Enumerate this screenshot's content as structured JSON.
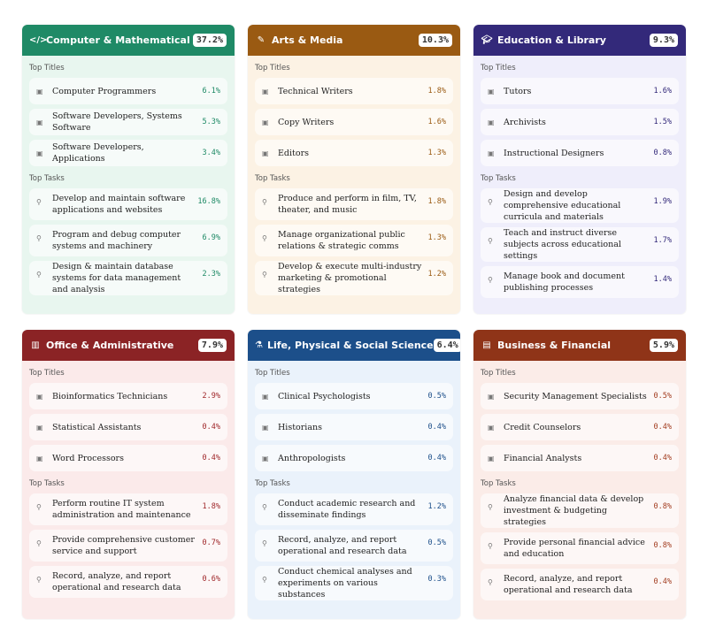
{
  "labels": {
    "titles": "Top Titles",
    "tasks": "Top Tasks"
  },
  "cards": [
    {
      "title": "Computer & Mathematical",
      "pct": "37.2%",
      "icon": "code-icon",
      "glyph": "</>",
      "header_color": "#1f8a66",
      "body_color": "#e8f6ef",
      "accent": "#1f8a66",
      "titles": [
        {
          "name": "Computer Programmers",
          "pct": "6.1%"
        },
        {
          "name": "Software Developers, Systems Software",
          "pct": "5.3%"
        },
        {
          "name": "Software Developers, Applications",
          "pct": "3.4%"
        }
      ],
      "tasks": [
        {
          "name": "Develop and maintain software applications and websites",
          "pct": "16.8%"
        },
        {
          "name": "Program and debug computer systems and machinery",
          "pct": "6.9%"
        },
        {
          "name": "Design & maintain database systems for data management and analysis",
          "pct": "2.3%"
        }
      ]
    },
    {
      "title": "Arts & Media",
      "pct": "10.3%",
      "icon": "brush-icon",
      "glyph": "✎",
      "header_color": "#9a5a12",
      "body_color": "#fcf2e4",
      "accent": "#9a5a12",
      "titles": [
        {
          "name": "Technical Writers",
          "pct": "1.8%"
        },
        {
          "name": "Copy Writers",
          "pct": "1.6%"
        },
        {
          "name": "Editors",
          "pct": "1.3%"
        }
      ],
      "tasks": [
        {
          "name": "Produce and perform in film, TV, theater, and music",
          "pct": "1.8%"
        },
        {
          "name": "Manage organizational public relations & strategic comms",
          "pct": "1.3%"
        },
        {
          "name": "Develop & execute multi-industry marketing & promotional strategies",
          "pct": "1.2%"
        }
      ]
    },
    {
      "title": "Education & Library",
      "pct": "9.3%",
      "icon": "graduation-cap-icon",
      "glyph": "🎓︎",
      "header_color": "#33297a",
      "body_color": "#efeefb",
      "accent": "#33297a",
      "titles": [
        {
          "name": "Tutors",
          "pct": "1.6%"
        },
        {
          "name": "Archivists",
          "pct": "1.5%"
        },
        {
          "name": "Instructional Designers",
          "pct": "0.8%"
        }
      ],
      "tasks": [
        {
          "name": "Design and develop comprehensive educational curricula and materials",
          "pct": "1.9%"
        },
        {
          "name": "Teach and instruct diverse subjects across educational settings",
          "pct": "1.7%"
        },
        {
          "name": "Manage book and document publishing processes",
          "pct": "1.4%"
        }
      ]
    },
    {
      "title": "Office & Administrative",
      "pct": "7.9%",
      "icon": "building-icon",
      "glyph": "▥",
      "header_color": "#8b2325",
      "body_color": "#fbeaea",
      "accent": "#a0282b",
      "titles": [
        {
          "name": "Bioinformatics Technicians",
          "pct": "2.9%"
        },
        {
          "name": "Statistical Assistants",
          "pct": "0.4%"
        },
        {
          "name": "Word Processors",
          "pct": "0.4%"
        }
      ],
      "tasks": [
        {
          "name": "Perform routine IT system administration and maintenance",
          "pct": "1.8%"
        },
        {
          "name": "Provide comprehensive customer service and support",
          "pct": "0.7%"
        },
        {
          "name": "Record, analyze, and report operational and research data",
          "pct": "0.6%"
        }
      ]
    },
    {
      "title": "Life, Physical & Social Science",
      "pct": "6.4%",
      "icon": "flask-icon",
      "glyph": "⚗",
      "header_color": "#1c4f8a",
      "body_color": "#eaf2fb",
      "accent": "#1c4f8a",
      "titles": [
        {
          "name": "Clinical Psychologists",
          "pct": "0.5%"
        },
        {
          "name": "Historians",
          "pct": "0.4%"
        },
        {
          "name": "Anthropologists",
          "pct": "0.4%"
        }
      ],
      "tasks": [
        {
          "name": "Conduct academic research and disseminate findings",
          "pct": "1.2%"
        },
        {
          "name": "Record, analyze, and report operational and research data",
          "pct": "0.5%"
        },
        {
          "name": "Conduct chemical analyses and experiments on various substances",
          "pct": "0.3%"
        }
      ]
    },
    {
      "title": "Business & Financial",
      "pct": "5.9%",
      "icon": "ledger-icon",
      "glyph": "▤",
      "header_color": "#8f3418",
      "body_color": "#fbece8",
      "accent": "#a23c1f",
      "titles": [
        {
          "name": "Security Management Specialists",
          "pct": "0.5%"
        },
        {
          "name": "Credit Counselors",
          "pct": "0.4%"
        },
        {
          "name": "Financial Analysts",
          "pct": "0.4%"
        }
      ],
      "tasks": [
        {
          "name": "Analyze financial data & develop investment & budgeting strategies",
          "pct": "0.8%"
        },
        {
          "name": "Provide personal financial advice and education",
          "pct": "0.8%"
        },
        {
          "name": "Record, analyze, and report operational and research data",
          "pct": "0.4%"
        }
      ]
    }
  ]
}
